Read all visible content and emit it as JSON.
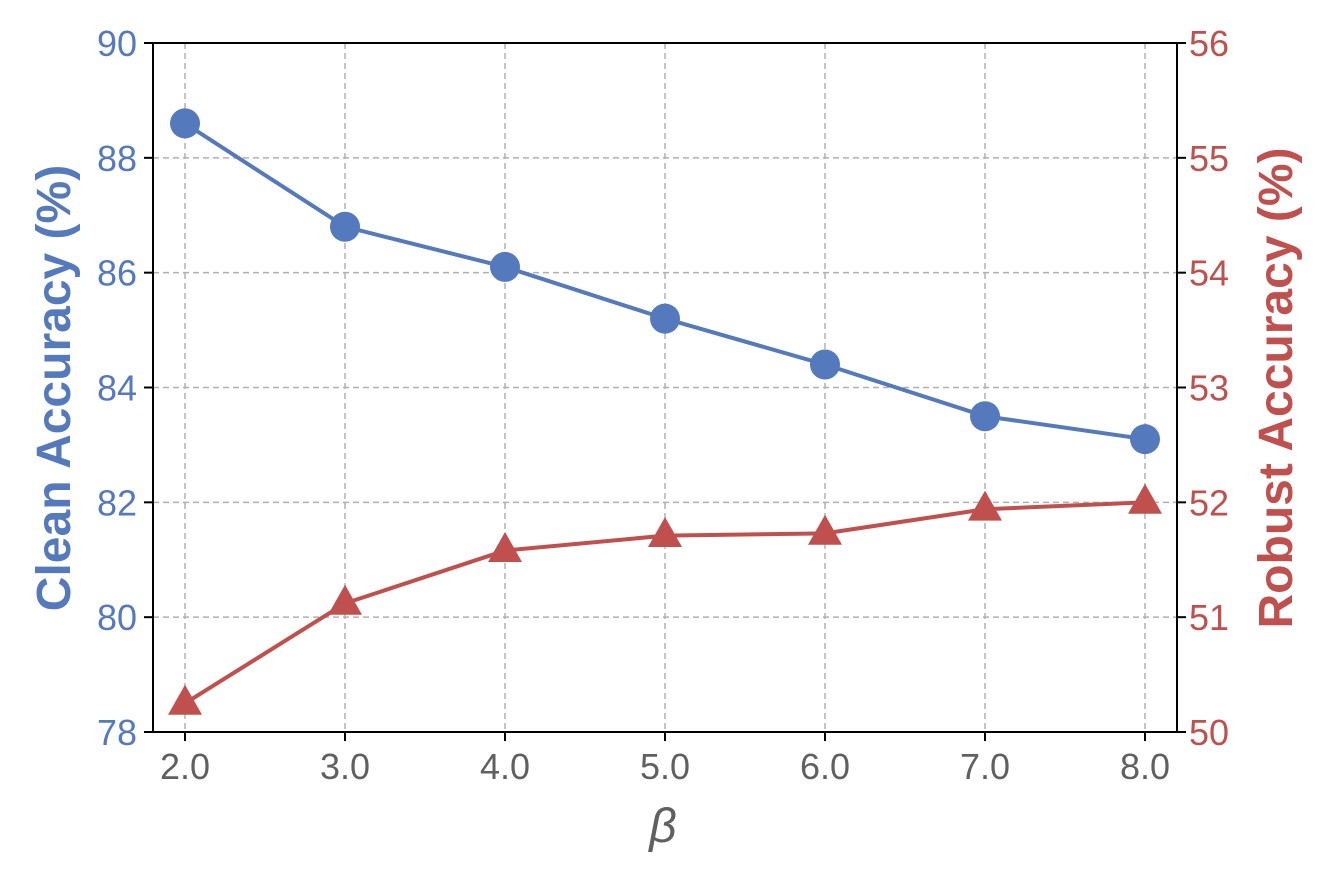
{
  "chart_data": {
    "type": "line",
    "x": [
      2.0,
      3.0,
      4.0,
      5.0,
      6.0,
      7.0,
      8.0
    ],
    "x_tick_labels": [
      "2.0",
      "3.0",
      "4.0",
      "5.0",
      "6.0",
      "7.0",
      "8.0"
    ],
    "xlabel": "β",
    "xlim": [
      1.8,
      8.2
    ],
    "ylabel_left": "Clean Accuracy (%)",
    "ylim_left": [
      78,
      90
    ],
    "y_ticks_left": [
      "78",
      "80",
      "82",
      "84",
      "86",
      "88",
      "90"
    ],
    "ylabel_right": "Robust Accuracy (%)",
    "ylim_right": [
      50,
      56
    ],
    "y_ticks_right": [
      "50",
      "51",
      "52",
      "53",
      "54",
      "55",
      "56"
    ],
    "grid": true,
    "legend": "none",
    "series": [
      {
        "axis": "left",
        "marker": "circle",
        "color": "#5479BD",
        "values": [
          88.6,
          86.8,
          86.1,
          85.2,
          84.4,
          83.5,
          83.1
        ]
      },
      {
        "axis": "right",
        "marker": "triangle",
        "color": "#C0504D",
        "values": [
          50.25,
          51.12,
          51.58,
          51.71,
          51.73,
          51.94,
          52.0
        ]
      }
    ]
  },
  "colors": {
    "left_axis": "#5479BD",
    "right_axis": "#C0504D",
    "x_axis_text": "#606060",
    "grid": "#b0b0b0",
    "spine": "#000000"
  }
}
